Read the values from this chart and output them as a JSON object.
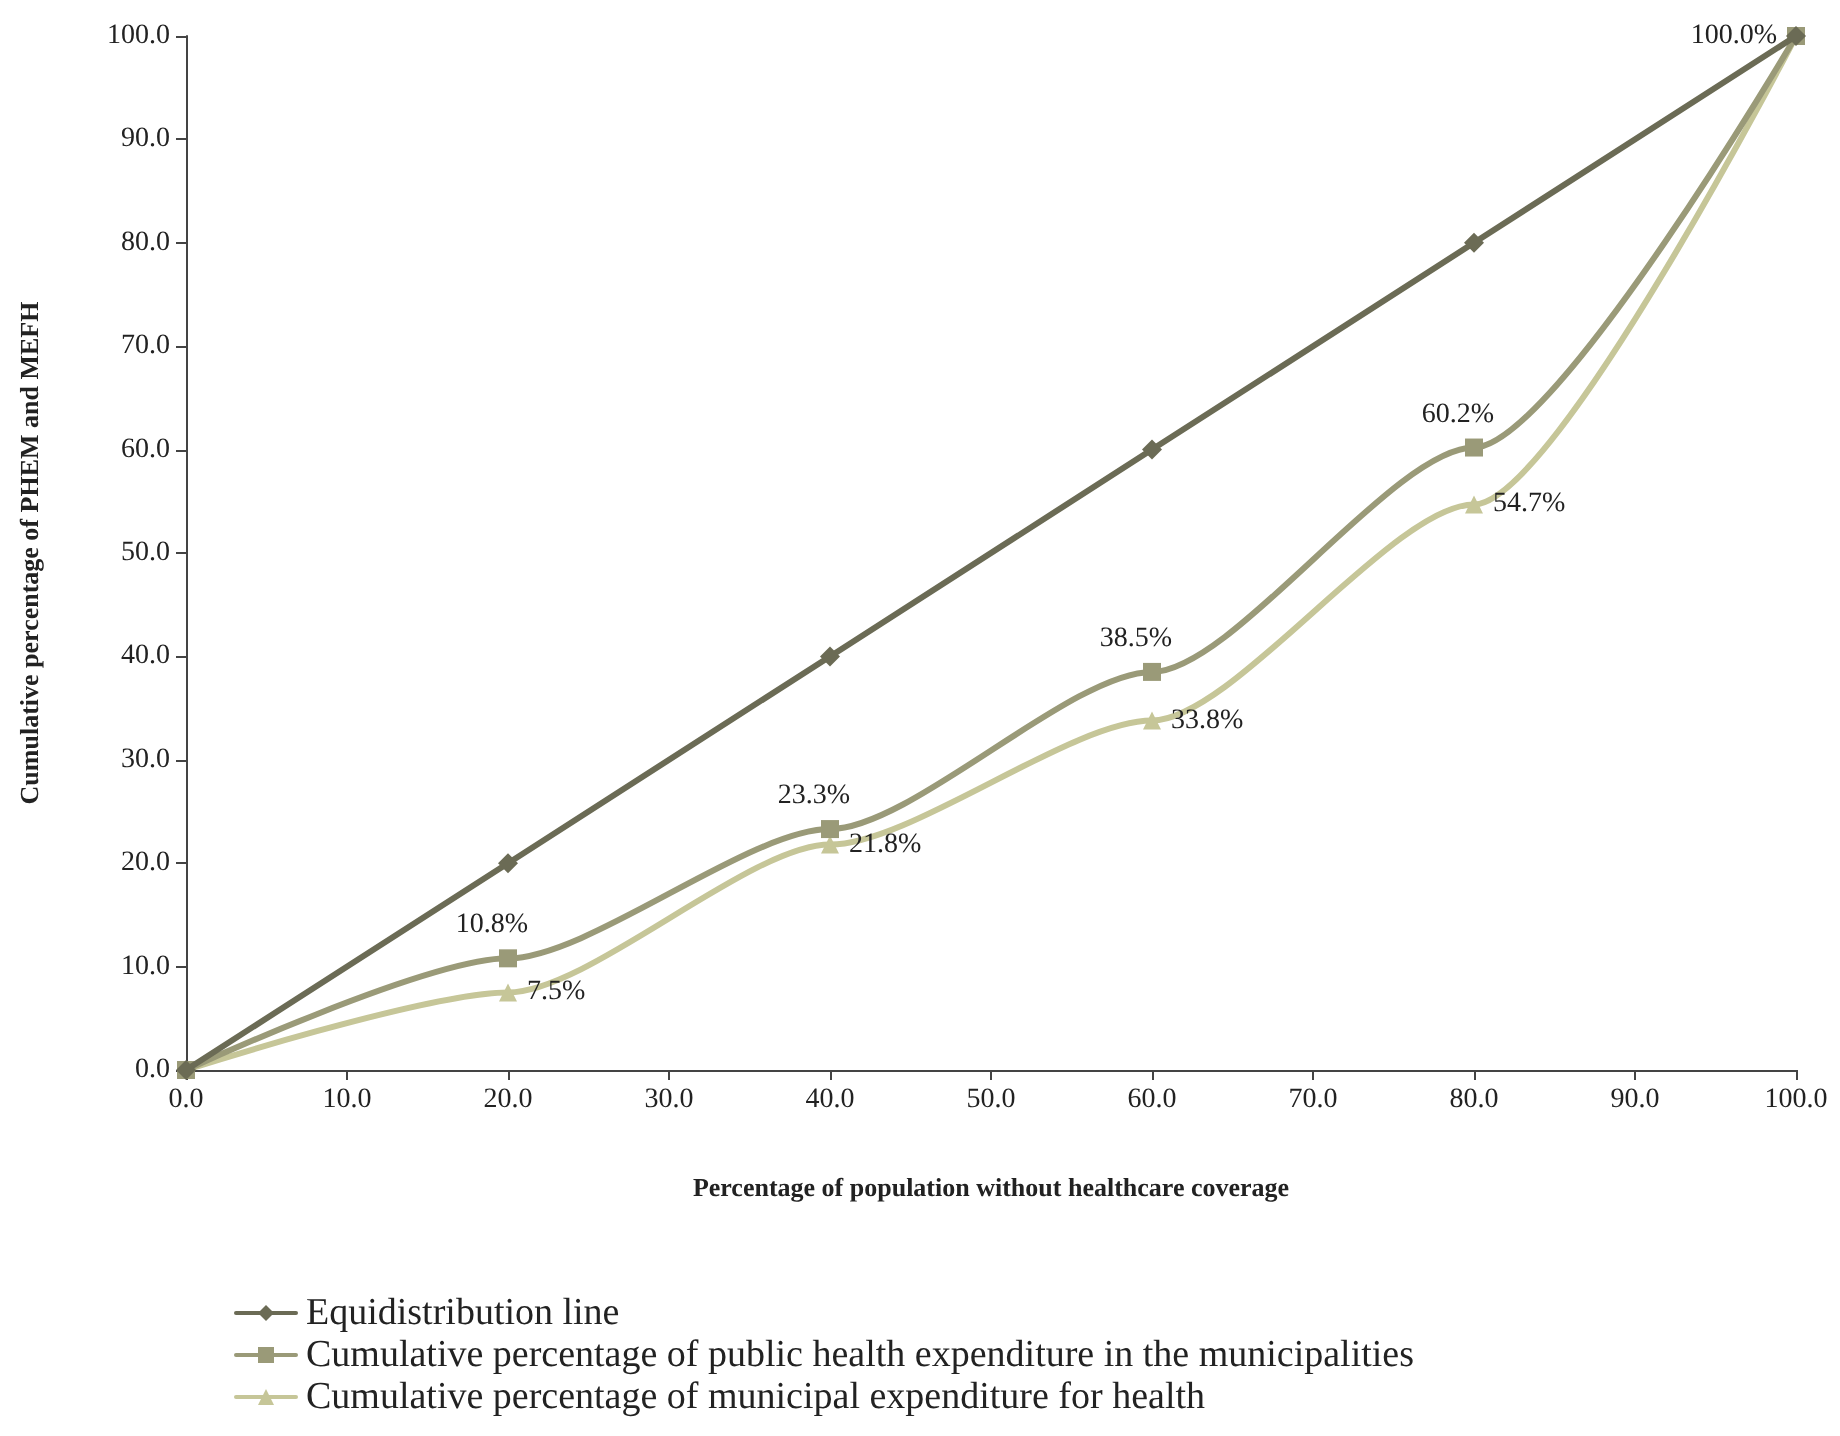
{
  "chart_data": {
    "type": "line",
    "xlabel": "Percentage of population without healthcare coverage",
    "ylabel": "Cumulative percentage of PHEM and MEFH",
    "x": [
      0,
      20,
      40,
      60,
      80,
      100
    ],
    "series": [
      {
        "name": "Equidistribution line",
        "color": "#6b6b55",
        "marker": "diamond",
        "values": [
          0,
          20,
          40,
          60,
          80,
          100
        ]
      },
      {
        "name": "Cumulative percentage of public health expenditure in the municipalities",
        "color": "#9a9a78",
        "marker": "square",
        "values": [
          0,
          10.8,
          23.3,
          38.5,
          60.2,
          100
        ],
        "value_labels": [
          null,
          "10.8%",
          "23.3%",
          "38.5%",
          "60.2%",
          "100.0%"
        ]
      },
      {
        "name": "Cumulative percentage of municipal expenditure for health",
        "color": "#c6c698",
        "marker": "triangle",
        "values": [
          0,
          7.5,
          21.8,
          33.8,
          54.7,
          100
        ],
        "value_labels": [
          null,
          "7.5%",
          "21.8%",
          "33.8%",
          "54.7%",
          null
        ]
      }
    ],
    "xlim": [
      0,
      100
    ],
    "xticks": [
      {
        "value": 0,
        "label": "0.0"
      },
      {
        "value": 10,
        "label": "10.0"
      },
      {
        "value": 20,
        "label": "20.0"
      },
      {
        "value": 30,
        "label": "30.0"
      },
      {
        "value": 40,
        "label": "40.0"
      },
      {
        "value": 50,
        "label": "50.0"
      },
      {
        "value": 60,
        "label": "60.0"
      },
      {
        "value": 70,
        "label": "70.0"
      },
      {
        "value": 80,
        "label": "80.0"
      },
      {
        "value": 90,
        "label": "90.0"
      },
      {
        "value": 100,
        "label": "100.0"
      }
    ],
    "ylim": [
      0,
      100
    ],
    "yticks": [
      {
        "value": 0,
        "label": "0.0"
      },
      {
        "value": 10,
        "label": "10.0"
      },
      {
        "value": 20,
        "label": "20.0"
      },
      {
        "value": 30,
        "label": "30.0"
      },
      {
        "value": 40,
        "label": "40.0"
      },
      {
        "value": 50,
        "label": "50.0"
      },
      {
        "value": 60,
        "label": "60.0"
      },
      {
        "value": 70,
        "label": "70.0"
      },
      {
        "value": 80,
        "label": "80.0"
      },
      {
        "value": 90,
        "label": "90.0"
      },
      {
        "value": 100,
        "label": "100.0"
      }
    ],
    "grid": false,
    "legend": "bottom left",
    "line_style": "solid"
  }
}
